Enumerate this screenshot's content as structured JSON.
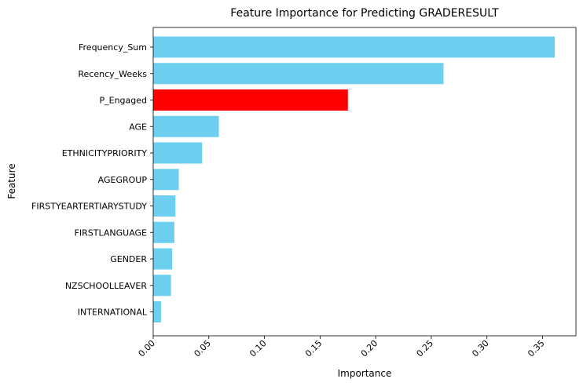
{
  "chart_data": {
    "type": "bar",
    "orientation": "horizontal",
    "title": "Feature Importance for Predicting GRADERESULT",
    "xlabel": "Importance",
    "ylabel": "Feature",
    "xlim": [
      0,
      0.38
    ],
    "xticks": [
      0.0,
      0.05,
      0.1,
      0.15,
      0.2,
      0.25,
      0.3,
      0.35
    ],
    "xtick_labels": [
      "0.00",
      "0.05",
      "0.10",
      "0.15",
      "0.20",
      "0.25",
      "0.30",
      "0.35"
    ],
    "grid": false,
    "bar_color": "#6dcff0",
    "highlight_color": "#ff0000",
    "categories": [
      "Frequency_Sum",
      "Recency_Weeks",
      "P_Engaged",
      "AGE",
      "ETHNICITYPRIORITY",
      "AGEGROUP",
      "FIRSTYEARTERTIARYSTUDY",
      "FIRSTLANGUAGE",
      "GENDER",
      "NZSCHOOLLEAVER",
      "INTERNATIONAL"
    ],
    "values": [
      0.361,
      0.261,
      0.175,
      0.059,
      0.044,
      0.023,
      0.02,
      0.019,
      0.017,
      0.016,
      0.007
    ],
    "highlighted": [
      "P_Engaged"
    ]
  }
}
